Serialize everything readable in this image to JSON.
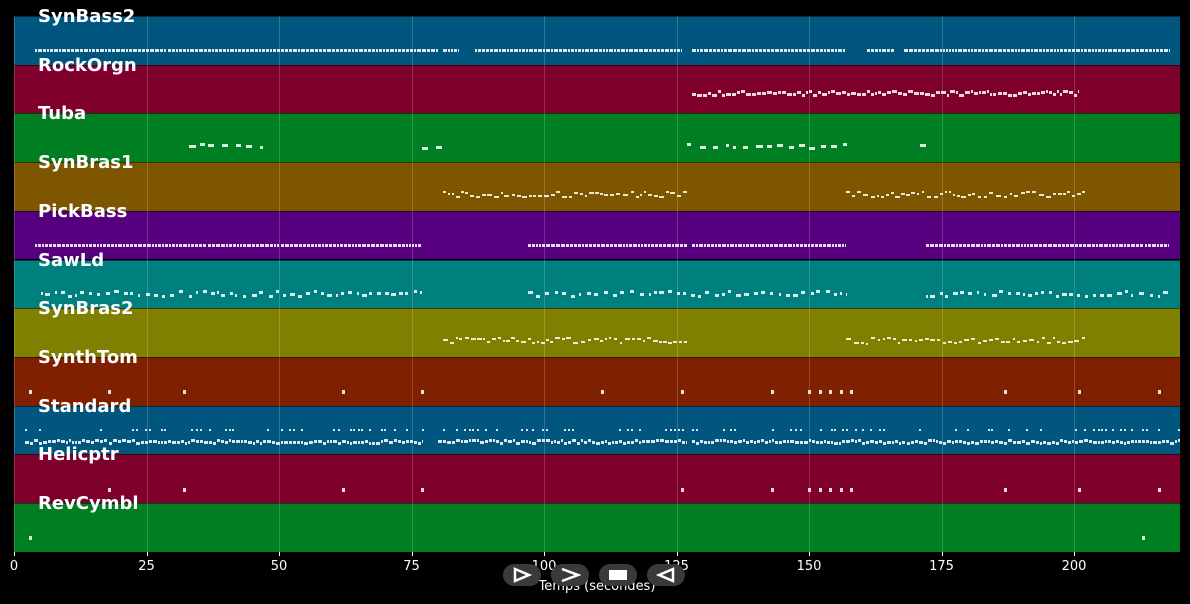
{
  "chart_data": {
    "type": "piano-roll",
    "xlabel": "Temps (secondes)",
    "xlim": [
      0,
      220
    ],
    "x_ticks": [
      "0",
      "25",
      "50",
      "75",
      "100",
      "125",
      "150",
      "175",
      "200"
    ],
    "x_tick_values": [
      0,
      25,
      50,
      75,
      100,
      125,
      150,
      175,
      200
    ],
    "grid": true,
    "tracks": [
      {
        "name": "SynBass2",
        "color": "#00567f",
        "segments": [
          [
            4,
            80
          ],
          [
            81,
            84
          ],
          [
            87,
            126
          ],
          [
            128,
            157
          ],
          [
            161,
            166
          ],
          [
            168,
            218
          ]
        ],
        "style": "dense"
      },
      {
        "name": "RockOrgn",
        "color": "#7f002d",
        "segments": [
          [
            128,
            201
          ]
        ],
        "style": "dense-upper"
      },
      {
        "name": "Tuba",
        "color": "#007f22",
        "segments": [
          [
            33,
            47
          ],
          [
            77,
            81
          ],
          [
            127,
            158
          ],
          [
            171,
            172
          ]
        ],
        "style": "sparse"
      },
      {
        "name": "SynBras1",
        "color": "#7f5600",
        "segments": [
          [
            81,
            127
          ],
          [
            157,
            202
          ]
        ],
        "style": "wavy"
      },
      {
        "name": "PickBass",
        "color": "#56007f",
        "segments": [
          [
            4,
            77
          ],
          [
            97,
            127
          ],
          [
            128,
            157
          ],
          [
            172,
            218
          ]
        ],
        "style": "dense"
      },
      {
        "name": "SawLd",
        "color": "#007f7f",
        "segments": [
          [
            5,
            77
          ],
          [
            97,
            157
          ],
          [
            172,
            218
          ]
        ],
        "style": "dashed"
      },
      {
        "name": "SynBras2",
        "color": "#7f7f00",
        "segments": [
          [
            81,
            127
          ],
          [
            157,
            202
          ]
        ],
        "style": "wavy"
      },
      {
        "name": "SynthTom",
        "color": "#7f2000",
        "hits": [
          3,
          18,
          32,
          62,
          77,
          111,
          126,
          143,
          150,
          152,
          154,
          156,
          158,
          187,
          201,
          216
        ],
        "style": "hits"
      },
      {
        "name": "Standard",
        "color": "#00567f",
        "segments": [
          [
            2,
            77
          ],
          [
            80,
            127
          ],
          [
            128,
            220
          ]
        ],
        "style": "drums"
      },
      {
        "name": "Helicptr",
        "color": "#7f002d",
        "hits": [
          18,
          32,
          62,
          77,
          126,
          143,
          150,
          152,
          154,
          156,
          158,
          187,
          201,
          216
        ],
        "style": "hits"
      },
      {
        "name": "RevCymbl",
        "color": "#007f22",
        "hits": [
          3,
          213
        ],
        "style": "hits"
      }
    ]
  },
  "controls": {
    "play_label": "play",
    "forward_label": "forward",
    "stop_label": "stop",
    "rewind_label": "rewind"
  }
}
